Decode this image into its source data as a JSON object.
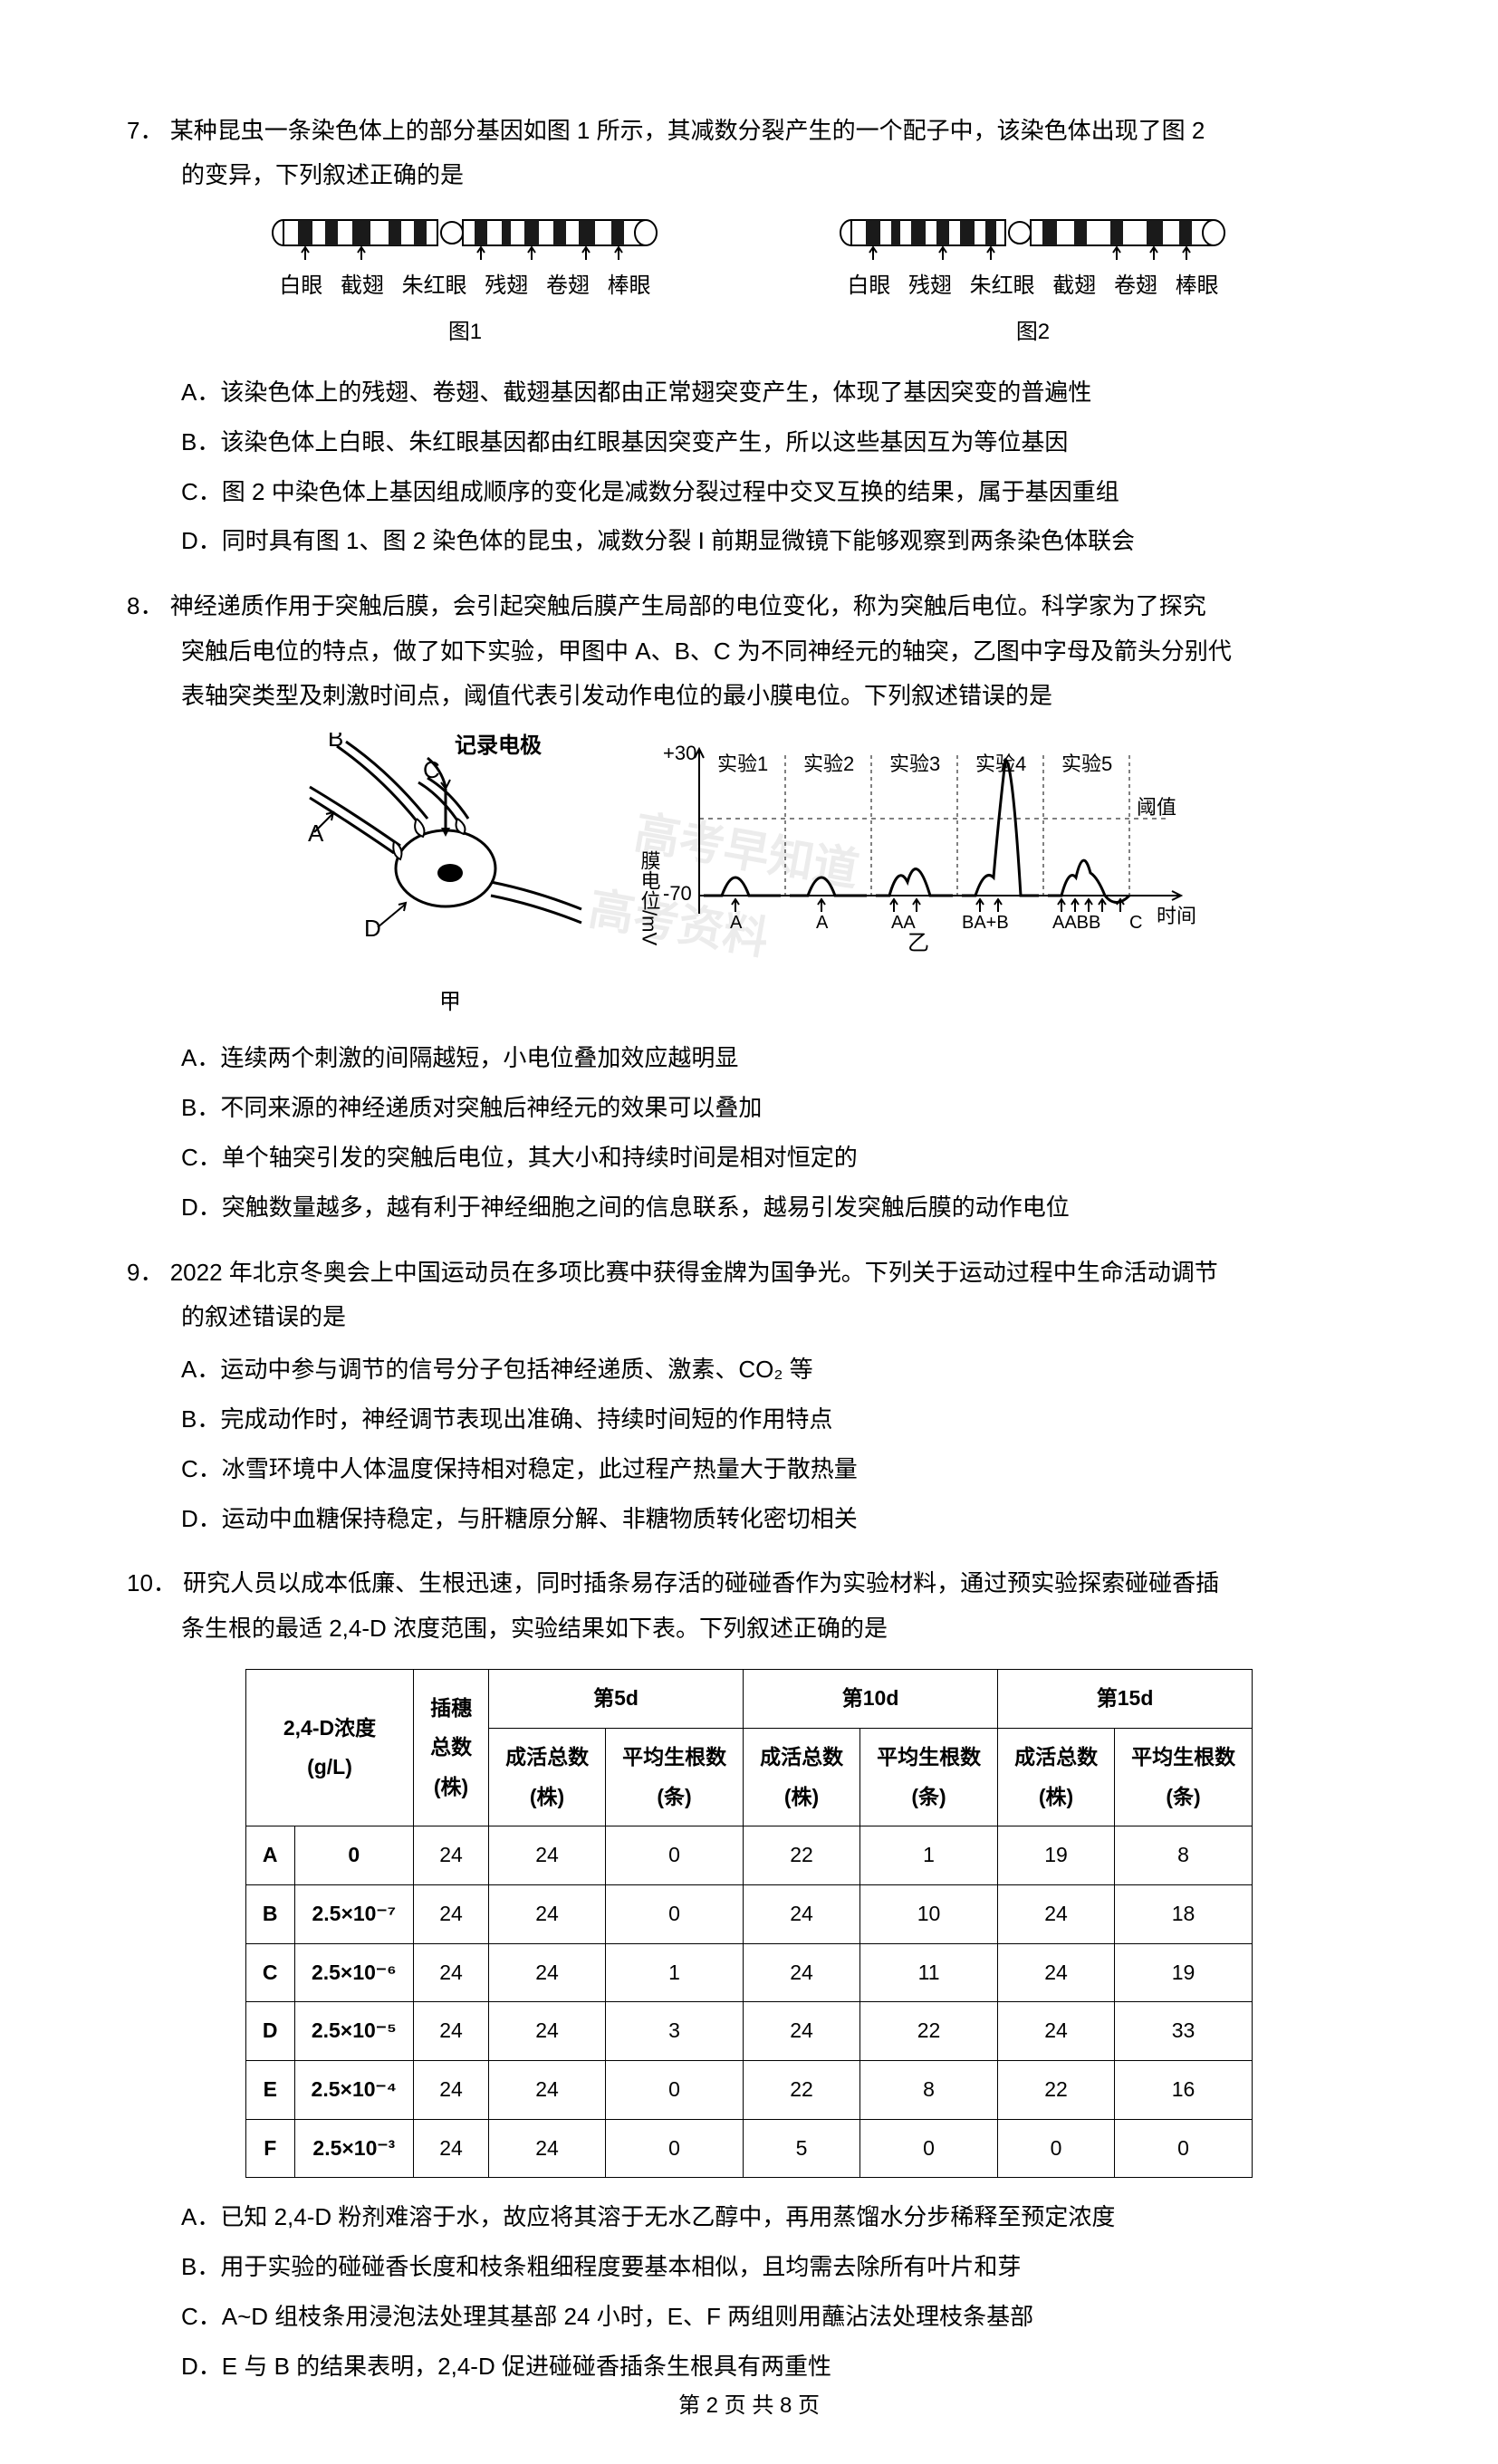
{
  "watermarks": {
    "w1": "高考早知道",
    "w2": "高考资料"
  },
  "q7": {
    "num": "7．",
    "stem": "某种昆虫一条染色体上的部分基因如图 1 所示，其减数分裂产生的一个配子中，该染色体出现了图 2",
    "stem_cont": "的变异，下列叙述正确的是",
    "chromosome": {
      "fig1": {
        "labels": [
          "白眼",
          "截翅",
          "朱红眼",
          "残翅",
          "卷翅",
          "棒眼"
        ],
        "caption": "图1"
      },
      "fig2": {
        "labels": [
          "白眼",
          "残翅",
          "朱红眼",
          "截翅",
          "卷翅",
          "棒眼"
        ],
        "caption": "图2"
      },
      "colors": {
        "band_dark": "#1a1a1a",
        "band_light": "#ffffff",
        "outline": "#000000"
      }
    },
    "options": {
      "A": "该染色体上的残翅、卷翅、截翅基因都由正常翅突变产生，体现了基因突变的普遍性",
      "B": "该染色体上白眼、朱红眼基因都由红眼基因突变产生，所以这些基因互为等位基因",
      "C": "图 2 中染色体上基因组成顺序的变化是减数分裂过程中交叉互换的结果，属于基因重组",
      "D": "同时具有图 1、图 2 染色体的昆虫，减数分裂 I 前期显微镜下能够观察到两条染色体联会"
    }
  },
  "q8": {
    "num": "8．",
    "stem": "神经递质作用于突触后膜，会引起突触后膜产生局部的电位变化，称为突触后电位。科学家为了探究",
    "stem_cont1": "突触后电位的特点，做了如下实验，甲图中 A、B、C 为不同神经元的轴突，乙图中字母及箭头分别代",
    "stem_cont2": "表轴突类型及刺激时间点，阈值代表引发动作电位的最小膜电位。下列叙述错误的是",
    "diagram": {
      "jia_caption": "甲",
      "yi_caption": "乙",
      "labels": {
        "electrode": "记录电极",
        "ylabel": "膜电位/mV",
        "ymax": "+30",
        "ymin": "-70",
        "xlabel": "时间",
        "threshold": "阈值",
        "exp1": "实验1",
        "exp2": "实验2",
        "exp3": "实验3",
        "exp4": "实验4",
        "exp5": "实验5",
        "x_ticks": [
          "A",
          "A",
          "AA",
          "BA+B",
          "AABB",
          "C"
        ],
        "nodes": [
          "A",
          "B",
          "C",
          "D"
        ]
      },
      "colors": {
        "line": "#000000",
        "bg": "#ffffff",
        "dash": "#000000"
      }
    },
    "options": {
      "A": "连续两个刺激的间隔越短，小电位叠加效应越明显",
      "B": "不同来源的神经递质对突触后神经元的效果可以叠加",
      "C": "单个轴突引发的突触后电位，其大小和持续时间是相对恒定的",
      "D": "突触数量越多，越有利于神经细胞之间的信息联系，越易引发突触后膜的动作电位"
    }
  },
  "q9": {
    "num": "9．",
    "stem": "2022 年北京冬奥会上中国运动员在多项比赛中获得金牌为国争光。下列关于运动过程中生命活动调节",
    "stem_cont": "的叙述错误的是",
    "options": {
      "A": "运动中参与调节的信号分子包括神经递质、激素、CO₂ 等",
      "B": "完成动作时，神经调节表现出准确、持续时间短的作用特点",
      "C": "冰雪环境中人体温度保持相对稳定，此过程产热量大于散热量",
      "D": "运动中血糖保持稳定，与肝糖原分解、非糖物质转化密切相关"
    }
  },
  "q10": {
    "num": "10．",
    "stem": "研究人员以成本低廉、生根迅速，同时插条易存活的碰碰香作为实验材料，通过预实验探索碰碰香插",
    "stem_cont": "条生根的最适 2,4-D 浓度范围，实验结果如下表。下列叙述正确的是",
    "table": {
      "header_group1": "2,4-D浓度",
      "header_group1_unit": "(g/L)",
      "header_col2": "插穗",
      "header_col2_sub1": "总数",
      "header_col2_sub2": "(株)",
      "header_day5": "第5d",
      "header_day10": "第10d",
      "header_day15": "第15d",
      "header_survived": "成活总数",
      "header_survived_unit": "(株)",
      "header_roots": "平均生根数",
      "header_roots_unit": "(条)",
      "rows": [
        {
          "label": "A",
          "conc": "0",
          "total": "24",
          "d5s": "24",
          "d5r": "0",
          "d10s": "22",
          "d10r": "1",
          "d15s": "19",
          "d15r": "8"
        },
        {
          "label": "B",
          "conc": "2.5×10⁻⁷",
          "total": "24",
          "d5s": "24",
          "d5r": "0",
          "d10s": "24",
          "d10r": "10",
          "d15s": "24",
          "d15r": "18"
        },
        {
          "label": "C",
          "conc": "2.5×10⁻⁶",
          "total": "24",
          "d5s": "24",
          "d5r": "1",
          "d10s": "24",
          "d10r": "11",
          "d15s": "24",
          "d15r": "19"
        },
        {
          "label": "D",
          "conc": "2.5×10⁻⁵",
          "total": "24",
          "d5s": "24",
          "d5r": "3",
          "d10s": "24",
          "d10r": "22",
          "d15s": "24",
          "d15r": "33"
        },
        {
          "label": "E",
          "conc": "2.5×10⁻⁴",
          "total": "24",
          "d5s": "24",
          "d5r": "0",
          "d10s": "22",
          "d10r": "8",
          "d15s": "22",
          "d15r": "16"
        },
        {
          "label": "F",
          "conc": "2.5×10⁻³",
          "total": "24",
          "d5s": "24",
          "d5r": "0",
          "d10s": "5",
          "d10r": "0",
          "d15s": "0",
          "d15r": "0"
        }
      ]
    },
    "options": {
      "A": "已知 2,4-D 粉剂难溶于水，故应将其溶于无水乙醇中，再用蒸馏水分步稀释至预定浓度",
      "B": "用于实验的碰碰香长度和枝条粗细程度要基本相似，且均需去除所有叶片和芽",
      "C": "A~D 组枝条用浸泡法处理其基部 24 小时，E、F 两组则用蘸沾法处理枝条基部",
      "D": "E 与 B 的结果表明，2,4-D 促进碰碰香插条生根具有两重性"
    }
  },
  "footer": "第 2 页  共 8 页"
}
